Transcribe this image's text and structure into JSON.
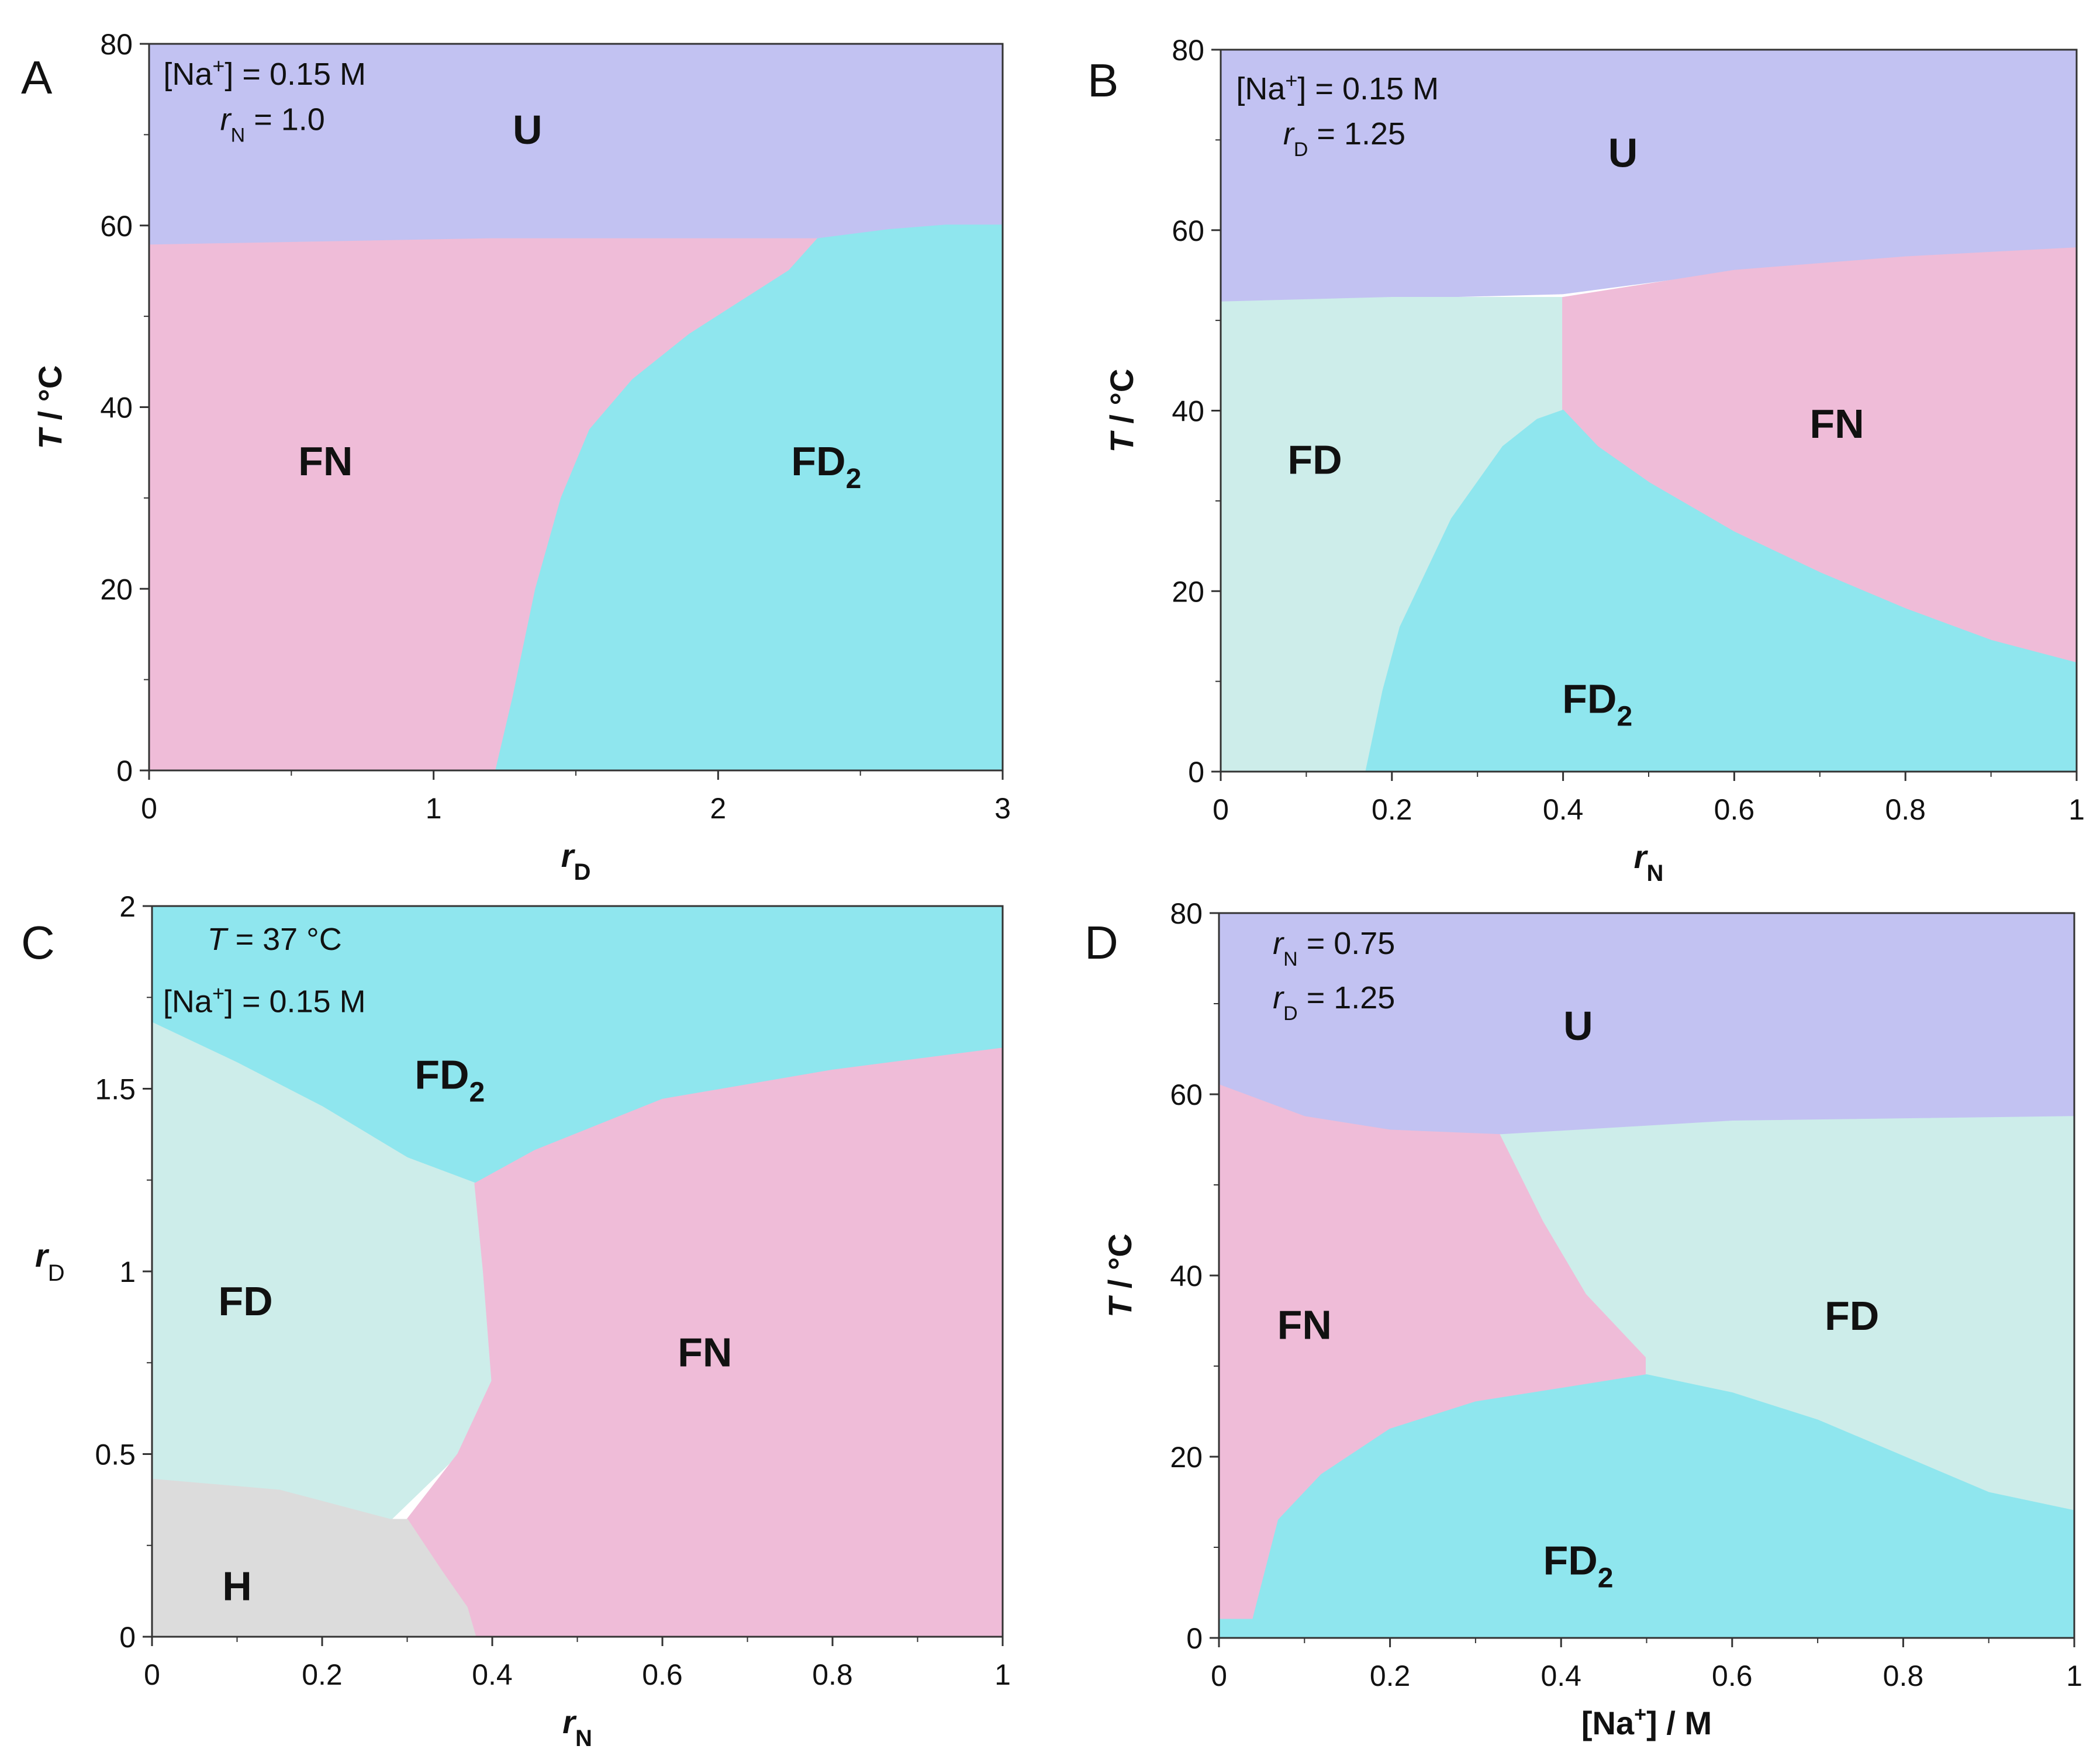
{
  "colors": {
    "U": "#c2c2f2",
    "FN": "#efbcd8",
    "FD": "#cdedea",
    "FD2": "#8fe6ee",
    "H": "#dcdcdc"
  },
  "chart_data": [
    {
      "type": "heatmap",
      "panel": "A",
      "title": "",
      "xlabel": "r",
      "xlabel_sub": "D",
      "ylabel": "T / °C",
      "xlim": [
        0,
        3
      ],
      "ylim": [
        0,
        80
      ],
      "xticks": [
        "0",
        "1",
        "2",
        "3"
      ],
      "yticks": [
        "0",
        "20",
        "40",
        "60",
        "80"
      ],
      "annotations": [
        {
          "prefix": "[Na",
          "sup": "+",
          "suffix": "] = 0.15 M",
          "x": 0.05,
          "y": 75.5
        },
        {
          "var": "r",
          "sub": "N",
          "suffix": " = 1.0",
          "x": 0.25,
          "y": 70.5
        }
      ],
      "regions": [
        {
          "phase": "U",
          "label": "U",
          "x": 1.33,
          "y": 69,
          "polygon": [
            [
              0,
              80
            ],
            [
              3,
              80
            ],
            [
              3,
              60
            ],
            [
              2.8,
              60
            ],
            [
              2.6,
              59.5
            ],
            [
              2.4,
              58.8
            ],
            [
              2.3,
              58.5
            ],
            [
              1.2,
              58.5
            ],
            [
              0,
              57.8
            ]
          ]
        },
        {
          "phase": "FN",
          "label": "FN",
          "x": 0.62,
          "y": 32.5,
          "polygon": [
            [
              0,
              57.8
            ],
            [
              1.2,
              58.5
            ],
            [
              2.35,
              58.5
            ],
            [
              2.25,
              55
            ],
            [
              2.1,
              52
            ],
            [
              1.9,
              48
            ],
            [
              1.7,
              43
            ],
            [
              1.55,
              37.5
            ],
            [
              1.45,
              30
            ],
            [
              1.36,
              20
            ],
            [
              1.28,
              8
            ],
            [
              1.22,
              0
            ],
            [
              0,
              0
            ]
          ]
        },
        {
          "phase": "FD2",
          "label": "FD",
          "sub": "2",
          "x": 2.38,
          "y": 32.5,
          "polygon": [
            [
              1.22,
              0
            ],
            [
              1.28,
              8
            ],
            [
              1.36,
              20
            ],
            [
              1.45,
              30
            ],
            [
              1.55,
              37.5
            ],
            [
              1.7,
              43
            ],
            [
              1.9,
              48
            ],
            [
              2.1,
              52
            ],
            [
              2.25,
              55
            ],
            [
              2.35,
              58.5
            ],
            [
              2.6,
              59.5
            ],
            [
              2.8,
              60
            ],
            [
              3,
              60
            ],
            [
              3,
              0
            ]
          ]
        }
      ]
    },
    {
      "type": "heatmap",
      "panel": "B",
      "title": "",
      "xlabel": "r",
      "xlabel_sub": "N",
      "ylabel": "T / °C",
      "xlim": [
        0,
        1
      ],
      "ylim": [
        0,
        80
      ],
      "xticks": [
        "0",
        "0.2",
        "0.4",
        "0.6",
        "0.8",
        "1"
      ],
      "yticks": [
        "0",
        "20",
        "40",
        "60",
        "80"
      ],
      "annotations": [
        {
          "prefix": "[Na",
          "sup": "+",
          "suffix": "] = 0.15 M",
          "x": 0.018,
          "y": 74.5
        },
        {
          "var": "r",
          "sub": "D",
          "suffix": " = 1.25",
          "x": 0.073,
          "y": 69.5
        }
      ],
      "regions": [
        {
          "phase": "U",
          "label": "U",
          "x": 0.47,
          "y": 67,
          "polygon": [
            [
              0,
              81
            ],
            [
              1,
              81
            ],
            [
              1,
              58
            ],
            [
              0.8,
              57
            ],
            [
              0.6,
              55.5
            ],
            [
              0.4,
              53
            ],
            [
              0.2,
              52.5
            ],
            [
              0,
              52
            ]
          ]
        },
        {
          "phase": "FD",
          "label": "FD",
          "x": 0.11,
          "y": 33,
          "polygon": [
            [
              0,
              52
            ],
            [
              0.2,
              52.5
            ],
            [
              0.4,
              52.5
            ],
            [
              0.4,
              40
            ],
            [
              0.37,
              39
            ],
            [
              0.33,
              36
            ],
            [
              0.3,
              32
            ],
            [
              0.27,
              28
            ],
            [
              0.24,
              22
            ],
            [
              0.21,
              16
            ],
            [
              0.19,
              9
            ],
            [
              0.17,
              0
            ],
            [
              0,
              0
            ]
          ]
        },
        {
          "phase": "FN",
          "label": "FN",
          "x": 0.72,
          "y": 37,
          "polygon": [
            [
              0.4,
              52.5
            ],
            [
              0.6,
              55.5
            ],
            [
              0.8,
              57
            ],
            [
              1,
              58
            ],
            [
              1,
              12
            ],
            [
              0.9,
              14.5
            ],
            [
              0.8,
              18
            ],
            [
              0.7,
              22
            ],
            [
              0.6,
              26.5
            ],
            [
              0.5,
              32
            ],
            [
              0.44,
              36
            ],
            [
              0.4,
              40
            ]
          ]
        },
        {
          "phase": "FD2",
          "label": "FD",
          "sub": "2",
          "x": 0.44,
          "y": 6.5,
          "polygon": [
            [
              0.17,
              0
            ],
            [
              0.19,
              9
            ],
            [
              0.21,
              16
            ],
            [
              0.24,
              22
            ],
            [
              0.27,
              28
            ],
            [
              0.3,
              32
            ],
            [
              0.33,
              36
            ],
            [
              0.37,
              39
            ],
            [
              0.4,
              40
            ],
            [
              0.44,
              36
            ],
            [
              0.5,
              32
            ],
            [
              0.6,
              26.5
            ],
            [
              0.7,
              22
            ],
            [
              0.8,
              18
            ],
            [
              0.9,
              14.5
            ],
            [
              1,
              12
            ],
            [
              1,
              0
            ]
          ]
        }
      ]
    },
    {
      "type": "heatmap",
      "panel": "C",
      "title": "",
      "xlabel": "r",
      "xlabel_sub": "N",
      "ylabel": "r",
      "ylabel_sub": "D",
      "xlim": [
        0,
        1
      ],
      "ylim": [
        0,
        2
      ],
      "xticks": [
        "0",
        "0.2",
        "0.4",
        "0.6",
        "0.8",
        "1"
      ],
      "yticks": [
        "0",
        "0.5",
        "1",
        "1.5",
        "2"
      ],
      "annotations": [
        {
          "var": "T",
          "suffix": " = 37 °C",
          "x": 0.065,
          "y": 1.88
        },
        {
          "prefix": "[Na",
          "sup": "+",
          "suffix": "] = 0.15 M",
          "x": 0.013,
          "y": 1.71
        }
      ],
      "regions": [
        {
          "phase": "FD2",
          "label": "FD",
          "sub": "2",
          "x": 0.35,
          "y": 1.5,
          "polygon": [
            [
              0,
              2.03
            ],
            [
              1,
              2.03
            ],
            [
              1,
              1.61
            ],
            [
              0.8,
              1.55
            ],
            [
              0.6,
              1.47
            ],
            [
              0.45,
              1.33
            ],
            [
              0.38,
              1.24
            ],
            [
              0.3,
              1.31
            ],
            [
              0.2,
              1.45
            ],
            [
              0.1,
              1.57
            ],
            [
              0,
              1.68
            ]
          ]
        },
        {
          "phase": "FD",
          "label": "FD",
          "x": 0.11,
          "y": 0.88,
          "polygon": [
            [
              0,
              1.68
            ],
            [
              0.1,
              1.57
            ],
            [
              0.2,
              1.45
            ],
            [
              0.3,
              1.31
            ],
            [
              0.38,
              1.24
            ],
            [
              0.39,
              1
            ],
            [
              0.4,
              0.7
            ],
            [
              0.36,
              0.5
            ],
            [
              0.28,
              0.32
            ],
            [
              0.15,
              0.4
            ],
            [
              0,
              0.43
            ]
          ]
        },
        {
          "phase": "FN",
          "label": "FN",
          "x": 0.65,
          "y": 0.74,
          "polygon": [
            [
              0.38,
              1.24
            ],
            [
              0.45,
              1.33
            ],
            [
              0.6,
              1.47
            ],
            [
              0.8,
              1.55
            ],
            [
              1,
              1.61
            ],
            [
              1,
              0
            ],
            [
              0.38,
              0
            ],
            [
              0.37,
              0.08
            ],
            [
              0.34,
              0.18
            ],
            [
              0.3,
              0.32
            ],
            [
              0.36,
              0.5
            ],
            [
              0.4,
              0.7
            ],
            [
              0.39,
              1
            ]
          ]
        },
        {
          "phase": "H",
          "label": "H",
          "x": 0.1,
          "y": 0.1,
          "polygon": [
            [
              0,
              0.43
            ],
            [
              0.15,
              0.4
            ],
            [
              0.28,
              0.32
            ],
            [
              0.3,
              0.32
            ],
            [
              0.34,
              0.18
            ],
            [
              0.37,
              0.08
            ],
            [
              0.38,
              0
            ],
            [
              0,
              0
            ]
          ]
        }
      ]
    },
    {
      "type": "heatmap",
      "panel": "D",
      "title": "",
      "xlabel": "[Na",
      "xlabel_sup": "+",
      "xlabel_suffix": "] / M",
      "ylabel": "T / °C",
      "xlim": [
        0,
        1
      ],
      "ylim": [
        0,
        80
      ],
      "xticks": [
        "0",
        "0.2",
        "0.4",
        "0.6",
        "0.8",
        "1"
      ],
      "yticks": [
        "0",
        "20",
        "40",
        "60",
        "80"
      ],
      "annotations": [
        {
          "var": "r",
          "sub": "N",
          "suffix": " = 0.75",
          "x": 0.063,
          "y": 75.5
        },
        {
          "var": "r",
          "sub": "D",
          "suffix": " = 1.25",
          "x": 0.063,
          "y": 69.5
        }
      ],
      "regions": [
        {
          "phase": "U",
          "label": "U",
          "x": 0.42,
          "y": 66,
          "polygon": [
            [
              0,
              81
            ],
            [
              1,
              81
            ],
            [
              1,
              57.5
            ],
            [
              0.6,
              57
            ],
            [
              0.4,
              56
            ],
            [
              0.3,
              55.5
            ],
            [
              0.2,
              56
            ],
            [
              0.1,
              57.5
            ],
            [
              0,
              61
            ]
          ]
        },
        {
          "phase": "FN",
          "label": "FN",
          "x": 0.1,
          "y": 33,
          "polygon": [
            [
              0,
              61
            ],
            [
              0.1,
              57.5
            ],
            [
              0.2,
              56
            ],
            [
              0.33,
              55.5
            ],
            [
              0.38,
              46
            ],
            [
              0.43,
              38
            ],
            [
              0.5,
              31
            ],
            [
              0.5,
              29
            ],
            [
              0.4,
              27.5
            ],
            [
              0.3,
              26
            ],
            [
              0.2,
              23
            ],
            [
              0.12,
              18
            ],
            [
              0.07,
              13
            ],
            [
              0.04,
              2
            ],
            [
              0,
              2
            ]
          ]
        },
        {
          "phase": "FD",
          "label": "FD",
          "x": 0.74,
          "y": 34,
          "polygon": [
            [
              0.33,
              55.5
            ],
            [
              0.6,
              57
            ],
            [
              1,
              57.5
            ],
            [
              1,
              14
            ],
            [
              0.9,
              16
            ],
            [
              0.8,
              20
            ],
            [
              0.7,
              24
            ],
            [
              0.6,
              27
            ],
            [
              0.5,
              29
            ],
            [
              0.5,
              31
            ],
            [
              0.43,
              38
            ],
            [
              0.38,
              46
            ]
          ]
        },
        {
          "phase": "FD2",
          "label": "FD",
          "sub": "2",
          "x": 0.42,
          "y": 7,
          "polygon": [
            [
              0,
              0
            ],
            [
              0,
              2
            ],
            [
              0.04,
              2
            ],
            [
              0.07,
              13
            ],
            [
              0.12,
              18
            ],
            [
              0.2,
              23
            ],
            [
              0.3,
              26
            ],
            [
              0.4,
              27.5
            ],
            [
              0.5,
              29
            ],
            [
              0.6,
              27
            ],
            [
              0.7,
              24
            ],
            [
              0.8,
              20
            ],
            [
              0.9,
              16
            ],
            [
              1,
              14
            ],
            [
              1,
              0
            ]
          ]
        }
      ]
    }
  ]
}
